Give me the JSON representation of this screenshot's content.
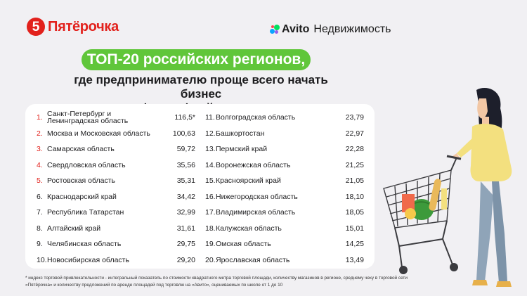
{
  "brand": {
    "left_glyph": "5",
    "left_name": "Пятёрочка",
    "right_name": "Avito",
    "right_sub": "Недвижимость"
  },
  "title": "ТОП-20 российских регионов,",
  "subtitle_lines": [
    "где предпринимателю проще всего начать бизнес",
    "в сфере офлайн-торговли"
  ],
  "table": {
    "left": [
      {
        "rank": "1.",
        "name": "Санкт-Петербург и Ленинградская область",
        "score": "116,5*"
      },
      {
        "rank": "2.",
        "name": "Москва и Московская область",
        "score": "100,63"
      },
      {
        "rank": "3.",
        "name": "Самарская область",
        "score": "59,72"
      },
      {
        "rank": "4.",
        "name": "Свердловская область",
        "score": "35,56"
      },
      {
        "rank": "5.",
        "name": "Ростовская область",
        "score": "35,31"
      },
      {
        "rank": "6.",
        "name": "Краснодарский край",
        "score": "34,42"
      },
      {
        "rank": "7.",
        "name": "Республика Татарстан",
        "score": "32,99"
      },
      {
        "rank": "8.",
        "name": "Алтайский край",
        "score": "31,61"
      },
      {
        "rank": "9.",
        "name": "Челябинская область",
        "score": "29,75"
      },
      {
        "rank": "10.",
        "name": "Новосибирская область",
        "score": "29,20"
      }
    ],
    "right": [
      {
        "rank": "11.",
        "name": "Волгоградская область",
        "score": "23,79"
      },
      {
        "rank": "12.",
        "name": "Башкортостан",
        "score": "22,97"
      },
      {
        "rank": "13.",
        "name": "Пермский край",
        "score": "22,28"
      },
      {
        "rank": "14.",
        "name": "Воронежская область",
        "score": "21,25"
      },
      {
        "rank": "15.",
        "name": "Красноярский край",
        "score": "21,05"
      },
      {
        "rank": "16.",
        "name": "Нижегородская область",
        "score": "18,10"
      },
      {
        "rank": "17.",
        "name": "Владимирская область",
        "score": "18,05"
      },
      {
        "rank": "18.",
        "name": "Калужская область",
        "score": "15,01"
      },
      {
        "rank": "19.",
        "name": "Омская область",
        "score": "14,25"
      },
      {
        "rank": "20.",
        "name": "Ярославская область",
        "score": "13,49"
      }
    ],
    "red_ranks": 5
  },
  "footnote": "* индекс торговой привлекательности - интегральный показатель по стоимости квадратного метра торговой площади, количеству магазинов в регионе, среднему чеку в торговой сети «Пятёрочка» и количеству предложений по аренде площадей под торговлю на «Авито», оцениваемых по школе от 1 до 10",
  "colors": {
    "brand_red": "#e2211c",
    "accent_green": "#60c63a",
    "bg": "#f1f0f3"
  },
  "icons": {
    "left_logo": "pyaterochka-logo-icon",
    "right_logo": "avito-dots-icon",
    "illustration": "woman-with-shopping-cart-illustration"
  }
}
